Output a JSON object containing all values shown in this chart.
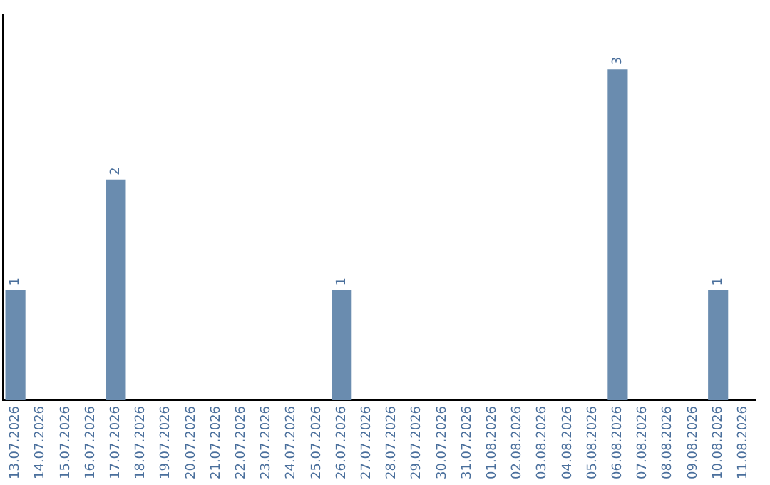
{
  "chart_data": {
    "type": "bar",
    "categories": [
      "13.07.2026",
      "14.07.2026",
      "15.07.2026",
      "16.07.2026",
      "17.07.2026",
      "18.07.2026",
      "19.07.2026",
      "20.07.2026",
      "21.07.2026",
      "22.07.2026",
      "23.07.2026",
      "24.07.2026",
      "25.07.2026",
      "26.07.2026",
      "27.07.2026",
      "28.07.2026",
      "29.07.2026",
      "30.07.2026",
      "31.07.2026",
      "01.08.2026",
      "02.08.2026",
      "03.08.2026",
      "04.08.2026",
      "05.08.2026",
      "06.08.2026",
      "07.08.2026",
      "08.08.2026",
      "09.08.2026",
      "10.08.2026",
      "11.08.2026"
    ],
    "values": [
      1,
      0,
      0,
      0,
      2,
      0,
      0,
      0,
      0,
      0,
      0,
      0,
      0,
      1,
      0,
      0,
      0,
      0,
      0,
      0,
      0,
      0,
      0,
      0,
      3,
      0,
      0,
      0,
      1,
      0
    ],
    "value_labels": [
      "1",
      null,
      null,
      null,
      "2",
      null,
      null,
      null,
      null,
      null,
      null,
      null,
      null,
      "1",
      null,
      null,
      null,
      null,
      null,
      null,
      null,
      null,
      null,
      null,
      "3",
      null,
      null,
      null,
      "1",
      null
    ],
    "color": "#6a8caf",
    "grid": false,
    "legend": false,
    "tick_labels": "x"
  }
}
